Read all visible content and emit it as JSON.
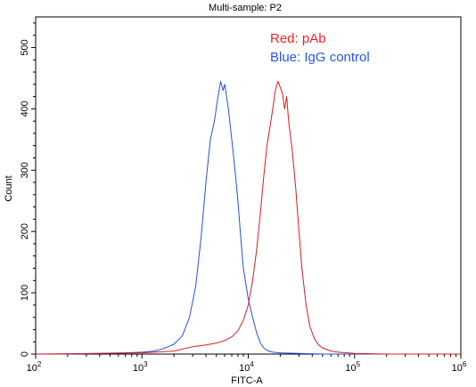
{
  "chart_data": {
    "type": "line",
    "title": "Multi-sample: P2",
    "xlabel": "FITC-A",
    "ylabel": "Count",
    "x_scale": "log",
    "xlim": [
      100,
      1000000
    ],
    "ylim": [
      0,
      550
    ],
    "x_ticks": [
      {
        "value": 100,
        "base": "10",
        "exp": "2"
      },
      {
        "value": 1000,
        "base": "10",
        "exp": "3"
      },
      {
        "value": 10000,
        "base": "10",
        "exp": "4"
      },
      {
        "value": 100000,
        "base": "10",
        "exp": "5"
      },
      {
        "value": 1000000,
        "base": "10",
        "exp": "6"
      }
    ],
    "y_ticks": [
      0,
      100,
      200,
      300,
      400,
      500
    ],
    "annotations": [
      {
        "text": "Red: pAb",
        "color": "#e8262b"
      },
      {
        "text": "Blue: IgG control",
        "color": "#2b55e6"
      }
    ],
    "series": [
      {
        "color": "#2b4fd8",
        "x": [
          100,
          200,
          400,
          700,
          1000,
          1300,
          1600,
          2000,
          2400,
          2800,
          3200,
          3600,
          4000,
          4400,
          4800,
          5200,
          5500,
          5800,
          6000,
          6200,
          6500,
          6800,
          7200,
          7600,
          8000,
          8500,
          9000,
          10000,
          11000,
          12000,
          13000,
          14000,
          15000,
          17000,
          20000,
          30000,
          50000,
          100000,
          300000,
          1000000
        ],
        "y": [
          0,
          0,
          1,
          2,
          3,
          5,
          9,
          16,
          30,
          60,
          110,
          190,
          280,
          350,
          380,
          420,
          445,
          430,
          440,
          425,
          400,
          370,
          330,
          290,
          250,
          190,
          140,
          90,
          60,
          35,
          18,
          10,
          6,
          3,
          2,
          1,
          0,
          0,
          0,
          0
        ]
      },
      {
        "color": "#d21f1f",
        "x": [
          100,
          1000,
          2000,
          3000,
          4000,
          5000,
          6000,
          7000,
          8000,
          9000,
          10000,
          11000,
          12000,
          13000,
          14000,
          15000,
          16000,
          17000,
          18000,
          19000,
          20000,
          21000,
          22000,
          23000,
          24000,
          26000,
          28000,
          30000,
          32000,
          35000,
          38000,
          42000,
          46000,
          50000,
          60000,
          70000,
          100000,
          200000,
          1000000
        ],
        "y": [
          0,
          2,
          5,
          12,
          15,
          18,
          22,
          28,
          38,
          55,
          80,
          120,
          170,
          230,
          290,
          340,
          370,
          400,
          430,
          445,
          435,
          425,
          400,
          420,
          380,
          330,
          270,
          200,
          140,
          80,
          45,
          25,
          15,
          10,
          5,
          3,
          1,
          0,
          0
        ]
      }
    ]
  }
}
